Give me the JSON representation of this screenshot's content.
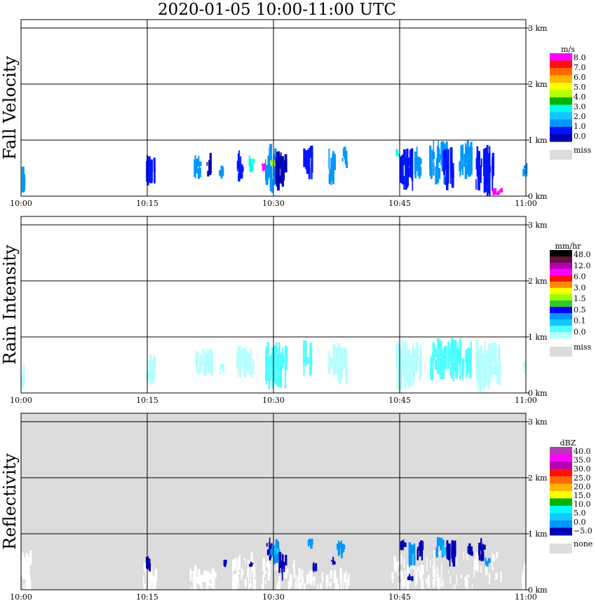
{
  "title": "2020-01-05   10:00-11:00 UTC",
  "colors": {
    "missing": "#dcdcdc",
    "grid": "#000000",
    "background": "#ffffff"
  },
  "chart_data": [
    {
      "type": "heatmap",
      "ylabel": "Fall Velocity",
      "x_ticks": [
        "10:00",
        "10:15",
        "10:30",
        "10:45",
        "11:00"
      ],
      "x_range_min": [
        0,
        60
      ],
      "y_ticks": [
        "0 km",
        "1 km",
        "2 km",
        "3 km"
      ],
      "y_range_km": [
        0,
        3.5
      ],
      "background": "none",
      "grid": true,
      "colorbar": {
        "unit": "m/s",
        "labels": [
          "8.0",
          "7.0",
          "6.0",
          "5.0",
          "4.0",
          "3.0",
          "2.0",
          "1.0",
          "0.0"
        ],
        "colors": [
          "#ff00ff",
          "#ff1010",
          "#ff6a00",
          "#ffb400",
          "#ffff00",
          "#b4ff00",
          "#00b400",
          "#00ffe6",
          "#14c8ff",
          "#0096ff",
          "#0014ff",
          "#0000b4"
        ],
        "missing_label": "miss",
        "missing_color": "#dcdcdc"
      },
      "echoes": [
        {
          "t0": 0.0,
          "t1": 0.4,
          "h0": 0.05,
          "h1": 0.55,
          "c": "#0096ff"
        },
        {
          "t0": 14.8,
          "t1": 15.8,
          "h0": 0.1,
          "h1": 0.75,
          "c": "#0014ff"
        },
        {
          "t0": 20.5,
          "t1": 21.5,
          "h0": 0.3,
          "h1": 0.75,
          "c": "#0096ff"
        },
        {
          "t0": 22.0,
          "t1": 22.6,
          "h0": 0.25,
          "h1": 0.8,
          "c": "#0000b4"
        },
        {
          "t0": 23.5,
          "t1": 24.0,
          "h0": 0.3,
          "h1": 0.55,
          "c": "#0096ff"
        },
        {
          "t0": 25.5,
          "t1": 26.3,
          "h0": 0.25,
          "h1": 0.85,
          "c": "#0014ff"
        },
        {
          "t0": 27.0,
          "t1": 27.5,
          "h0": 0.35,
          "h1": 0.75,
          "c": "#00ffe6"
        },
        {
          "t0": 29.0,
          "t1": 30.2,
          "h0": 0.0,
          "h1": 0.95,
          "c": "#0096ff"
        },
        {
          "t0": 30.2,
          "t1": 31.5,
          "h0": 0.1,
          "h1": 0.9,
          "c": "#0000b4"
        },
        {
          "t0": 29.5,
          "t1": 30.0,
          "h0": 0.5,
          "h1": 0.65,
          "c": "#b4ff00"
        },
        {
          "t0": 28.6,
          "t1": 29.0,
          "h0": 0.45,
          "h1": 0.6,
          "c": "#ff00ff"
        },
        {
          "t0": 33.5,
          "t1": 34.5,
          "h0": 0.3,
          "h1": 0.95,
          "c": "#0014ff"
        },
        {
          "t0": 36.5,
          "t1": 37.3,
          "h0": 0.15,
          "h1": 0.85,
          "c": "#0096ff"
        },
        {
          "t0": 38.0,
          "t1": 38.6,
          "h0": 0.5,
          "h1": 0.9,
          "c": "#0096ff"
        },
        {
          "t0": 44.5,
          "t1": 44.9,
          "h0": 0.7,
          "h1": 0.85,
          "c": "#00ffe6"
        },
        {
          "t0": 45.0,
          "t1": 46.5,
          "h0": 0.05,
          "h1": 0.95,
          "c": "#0014ff"
        },
        {
          "t0": 46.5,
          "t1": 47.5,
          "h0": 0.3,
          "h1": 0.9,
          "c": "#0096ff"
        },
        {
          "t0": 48.5,
          "t1": 50.5,
          "h0": 0.2,
          "h1": 1.0,
          "c": "#0096ff"
        },
        {
          "t0": 50.0,
          "t1": 51.2,
          "h0": 0.1,
          "h1": 0.9,
          "c": "#0014ff"
        },
        {
          "t0": 52.0,
          "t1": 53.5,
          "h0": 0.3,
          "h1": 1.0,
          "c": "#0096ff"
        },
        {
          "t0": 54.0,
          "t1": 56.0,
          "h0": 0.0,
          "h1": 0.95,
          "c": "#0014ff"
        },
        {
          "t0": 56.0,
          "t1": 57.0,
          "h0": 0.0,
          "h1": 0.15,
          "c": "#ff00ff"
        },
        {
          "t0": 59.6,
          "t1": 60.0,
          "h0": 0.35,
          "h1": 0.6,
          "c": "#0096ff"
        }
      ]
    },
    {
      "type": "heatmap",
      "ylabel": "Rain Intensity",
      "x_ticks": [
        "10:00",
        "10:15",
        "10:30",
        "10:45",
        "11:00"
      ],
      "x_range_min": [
        0,
        60
      ],
      "y_ticks": [
        "0 km",
        "1 km",
        "2 km",
        "3 km"
      ],
      "y_range_km": [
        0,
        3.5
      ],
      "background": "none",
      "grid": true,
      "colorbar": {
        "unit": "mm/hr",
        "labels": [
          "48.0",
          "12.0",
          "6.0",
          "3.0",
          "1.5",
          "0.5",
          "0.1",
          "0.0"
        ],
        "colors": [
          "#000000",
          "#64143c",
          "#b400b4",
          "#ff00ff",
          "#ff1010",
          "#ff8c00",
          "#ffff00",
          "#96ff00",
          "#32c832",
          "#0000ff",
          "#0096ff",
          "#14c8ff",
          "#50ffff",
          "#b4ffff"
        ],
        "missing_label": "miss",
        "missing_color": "#dcdcdc"
      },
      "echoes": [
        {
          "t0": 0.0,
          "t1": 0.4,
          "h0": 0.05,
          "h1": 0.55,
          "c": "#b4ffff"
        },
        {
          "t0": 14.8,
          "t1": 15.8,
          "h0": 0.1,
          "h1": 0.75,
          "c": "#b4ffff"
        },
        {
          "t0": 20.5,
          "t1": 22.6,
          "h0": 0.3,
          "h1": 0.8,
          "c": "#b4ffff"
        },
        {
          "t0": 23.5,
          "t1": 24.0,
          "h0": 0.3,
          "h1": 0.55,
          "c": "#b4ffff"
        },
        {
          "t0": 25.5,
          "t1": 27.5,
          "h0": 0.25,
          "h1": 0.85,
          "c": "#b4ffff"
        },
        {
          "t0": 29.0,
          "t1": 31.5,
          "h0": 0.05,
          "h1": 0.95,
          "c": "#50ffff"
        },
        {
          "t0": 33.5,
          "t1": 34.5,
          "h0": 0.3,
          "h1": 0.95,
          "c": "#50ffff"
        },
        {
          "t0": 36.5,
          "t1": 38.6,
          "h0": 0.15,
          "h1": 0.9,
          "c": "#b4ffff"
        },
        {
          "t0": 44.5,
          "t1": 47.5,
          "h0": 0.05,
          "h1": 0.95,
          "c": "#b4ffff"
        },
        {
          "t0": 48.5,
          "t1": 53.5,
          "h0": 0.2,
          "h1": 1.0,
          "c": "#50ffff"
        },
        {
          "t0": 54.0,
          "t1": 57.0,
          "h0": 0.0,
          "h1": 0.95,
          "c": "#b4ffff"
        },
        {
          "t0": 59.6,
          "t1": 60.0,
          "h0": 0.35,
          "h1": 0.6,
          "c": "#b4ffff"
        }
      ]
    },
    {
      "type": "heatmap",
      "ylabel": "Reflectivity",
      "x_ticks": [
        "10:00",
        "10:15",
        "10:30",
        "10:45",
        "11:00"
      ],
      "x_range_min": [
        0,
        60
      ],
      "y_ticks": [
        "0 km",
        "1 km",
        "2 km",
        "3 km"
      ],
      "y_range_km": [
        0,
        3.5
      ],
      "background": "missing",
      "grid": true,
      "colorbar": {
        "unit": "dBZ",
        "labels": [
          "40.0",
          "35.0",
          "30.0",
          "25.0",
          "20.0",
          "15.0",
          "10.0",
          "5.0",
          "0.0",
          "−5.0"
        ],
        "colors": [
          "#b43cb4",
          "#ff00ff",
          "#b400b4",
          "#ff1010",
          "#ff6a00",
          "#ffb400",
          "#ffff00",
          "#00b400",
          "#00ffff",
          "#14c8ff",
          "#0096ff",
          "#0000b4"
        ],
        "missing_label": "none",
        "missing_color": "#dcdcdc"
      },
      "clear_regions": [
        {
          "t0": 0.0,
          "t1": 1.0,
          "h0": 0.0,
          "h1": 0.6
        },
        {
          "t0": 14.5,
          "t1": 16.0,
          "h0": 0.0,
          "h1": 0.45
        },
        {
          "t0": 20.0,
          "t1": 23.0,
          "h0": 0.0,
          "h1": 0.35
        },
        {
          "t0": 25.0,
          "t1": 28.0,
          "h0": 0.0,
          "h1": 0.6
        },
        {
          "t0": 28.5,
          "t1": 33.0,
          "h0": 0.0,
          "h1": 0.5
        },
        {
          "t0": 33.0,
          "t1": 39.0,
          "h0": 0.0,
          "h1": 0.3
        },
        {
          "t0": 44.0,
          "t1": 49.0,
          "h0": 0.0,
          "h1": 0.55
        },
        {
          "t0": 49.0,
          "t1": 57.5,
          "h0": 0.0,
          "h1": 0.65
        },
        {
          "t0": 59.5,
          "t1": 60.0,
          "h0": 0.0,
          "h1": 0.4
        }
      ],
      "echoes": [
        {
          "t0": 14.8,
          "t1": 15.4,
          "h0": 0.3,
          "h1": 0.6,
          "c": "#0000b4"
        },
        {
          "t0": 24.0,
          "t1": 24.4,
          "h0": 0.4,
          "h1": 0.55,
          "c": "#0000b4"
        },
        {
          "t0": 27.0,
          "t1": 27.4,
          "h0": 0.4,
          "h1": 0.5,
          "c": "#0000b4"
        },
        {
          "t0": 29.0,
          "t1": 29.8,
          "h0": 0.5,
          "h1": 0.95,
          "c": "#0000b4"
        },
        {
          "t0": 29.6,
          "t1": 30.6,
          "h0": 0.45,
          "h1": 0.9,
          "c": "#0096ff"
        },
        {
          "t0": 30.0,
          "t1": 30.5,
          "h0": 0.6,
          "h1": 0.8,
          "c": "#14c8ff"
        },
        {
          "t0": 30.6,
          "t1": 31.4,
          "h0": 0.15,
          "h1": 0.7,
          "c": "#0000b4"
        },
        {
          "t0": 34.0,
          "t1": 34.6,
          "h0": 0.7,
          "h1": 0.95,
          "c": "#0096ff"
        },
        {
          "t0": 34.6,
          "t1": 35.0,
          "h0": 0.3,
          "h1": 0.5,
          "c": "#0000b4"
        },
        {
          "t0": 37.5,
          "t1": 38.3,
          "h0": 0.55,
          "h1": 0.9,
          "c": "#0096ff"
        },
        {
          "t0": 36.8,
          "t1": 37.2,
          "h0": 0.4,
          "h1": 0.6,
          "c": "#0000b4"
        },
        {
          "t0": 45.0,
          "t1": 45.5,
          "h0": 0.7,
          "h1": 0.9,
          "c": "#0000b4"
        },
        {
          "t0": 46.0,
          "t1": 46.8,
          "h0": 0.4,
          "h1": 0.85,
          "c": "#0096ff"
        },
        {
          "t0": 47.0,
          "t1": 47.6,
          "h0": 0.5,
          "h1": 0.9,
          "c": "#0000b4"
        },
        {
          "t0": 45.8,
          "t1": 46.4,
          "h0": 0.15,
          "h1": 0.3,
          "c": "#0000b4"
        },
        {
          "t0": 49.2,
          "t1": 50.2,
          "h0": 0.55,
          "h1": 0.95,
          "c": "#0096ff"
        },
        {
          "t0": 50.0,
          "t1": 50.5,
          "h0": 0.6,
          "h1": 0.8,
          "c": "#14c8ff"
        },
        {
          "t0": 50.5,
          "t1": 51.5,
          "h0": 0.4,
          "h1": 0.9,
          "c": "#0000b4"
        },
        {
          "t0": 53.0,
          "t1": 53.5,
          "h0": 0.6,
          "h1": 0.85,
          "c": "#0000b4"
        },
        {
          "t0": 54.0,
          "t1": 55.0,
          "h0": 0.5,
          "h1": 1.0,
          "c": "#0000b4"
        },
        {
          "t0": 55.0,
          "t1": 55.5,
          "h0": 0.4,
          "h1": 0.6,
          "c": "#0096ff"
        }
      ]
    }
  ]
}
